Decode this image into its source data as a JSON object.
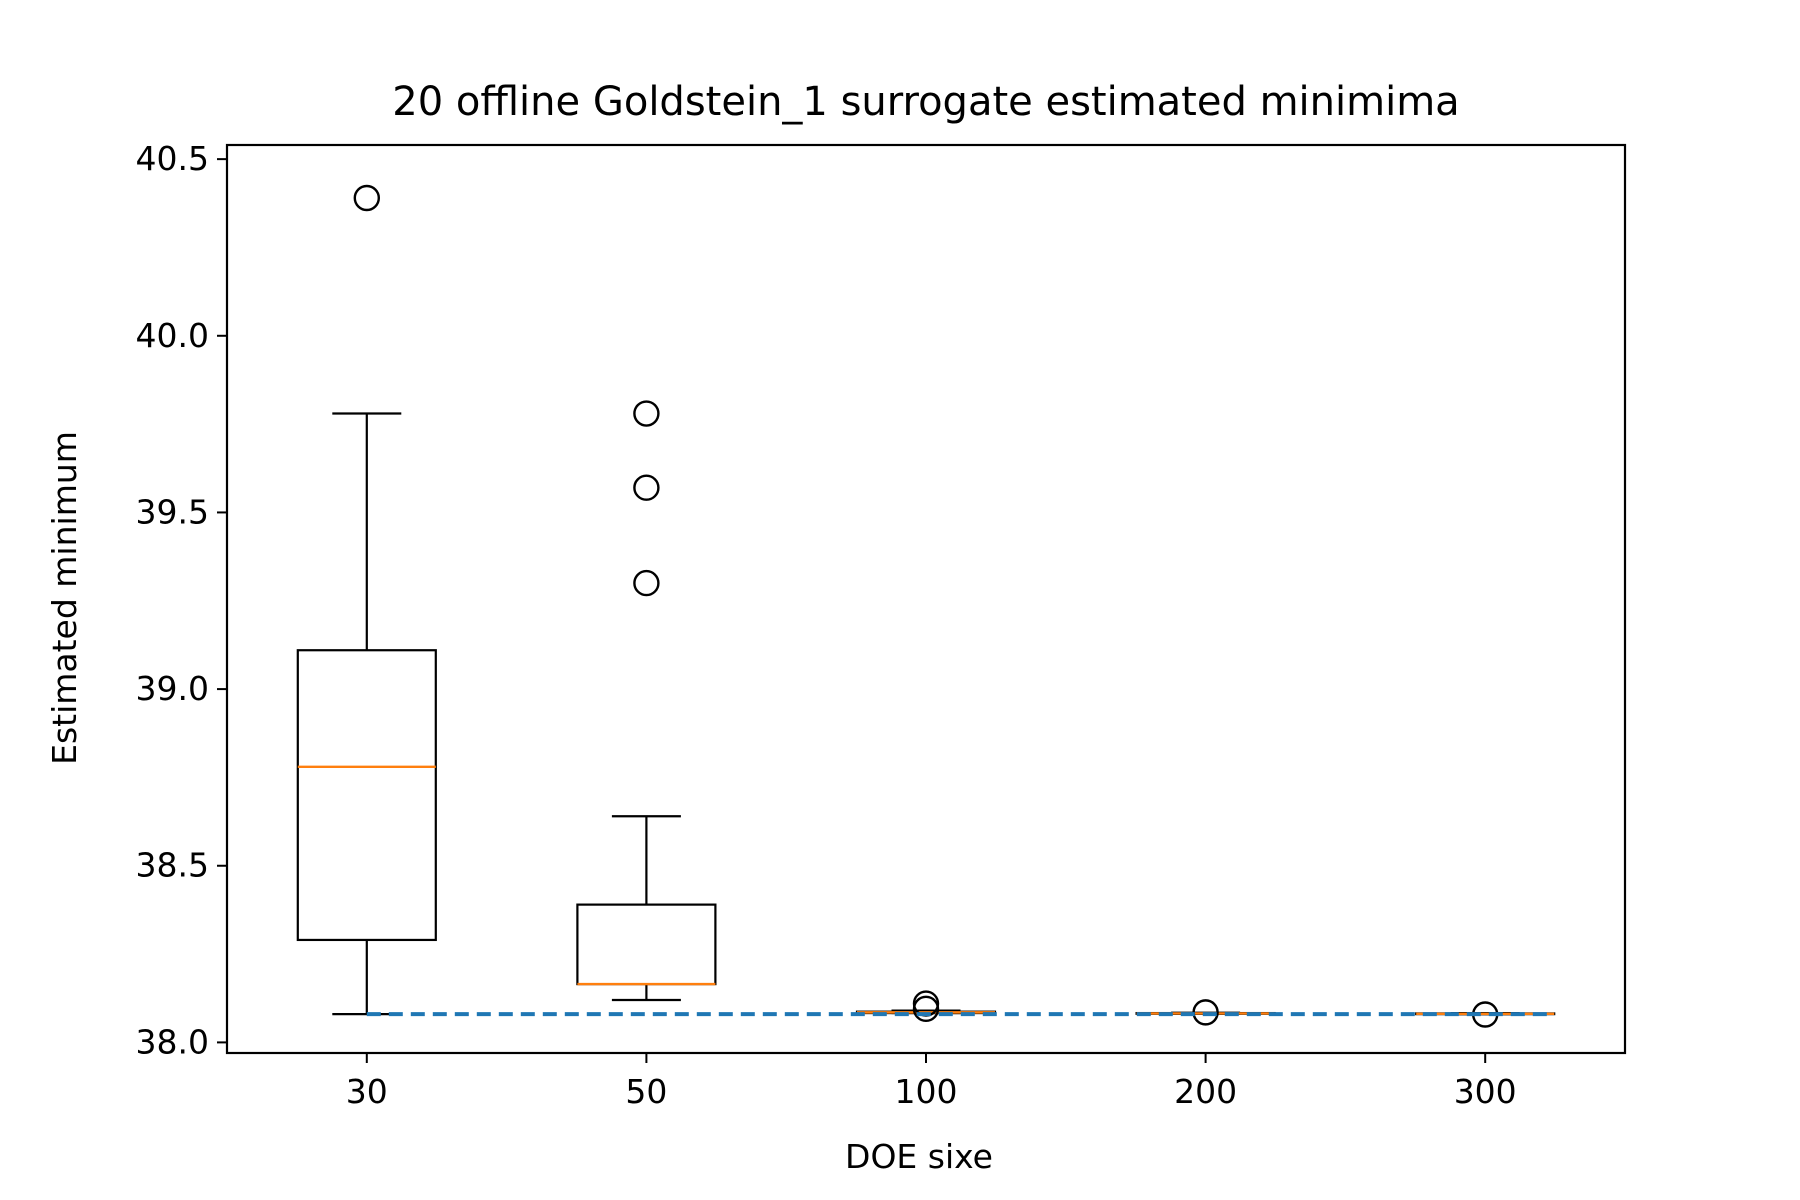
{
  "chart_data": {
    "type": "box",
    "title": "20 offline Goldstein_1 surrogate estimated minimima",
    "xlabel": "DOE sixe",
    "ylabel": "Estimated minimum",
    "ylim": [
      37.97,
      40.54
    ],
    "yticks": [
      "38.0",
      "38.5",
      "39.0",
      "39.5",
      "40.0",
      "40.5"
    ],
    "categories": [
      "30",
      "50",
      "100",
      "200",
      "300"
    ],
    "boxes": [
      {
        "category": "30",
        "whisker_low": 38.08,
        "q1": 38.29,
        "median": 38.78,
        "q3": 39.11,
        "whisker_high": 39.78,
        "outliers": [
          40.39
        ]
      },
      {
        "category": "50",
        "whisker_low": 38.12,
        "q1": 38.165,
        "median": 38.165,
        "q3": 38.39,
        "whisker_high": 38.64,
        "outliers": [
          39.3,
          39.57,
          39.78
        ]
      },
      {
        "category": "100",
        "whisker_low": 38.083,
        "q1": 38.083,
        "median": 38.085,
        "q3": 38.087,
        "whisker_high": 38.09,
        "outliers": [
          38.095,
          38.11
        ]
      },
      {
        "category": "200",
        "whisker_low": 38.081,
        "q1": 38.081,
        "median": 38.082,
        "q3": 38.083,
        "whisker_high": 38.084,
        "outliers": [
          38.085
        ]
      },
      {
        "category": "300",
        "whisker_low": 38.08,
        "q1": 38.08,
        "median": 38.081,
        "q3": 38.082,
        "whisker_high": 38.083,
        "outliers": [
          38.079
        ]
      }
    ],
    "reference_line": {
      "value": 38.08,
      "style": "dashed"
    },
    "colors": {
      "box": "#000000",
      "median": "#ff7f0e",
      "reference": "#1f77b4"
    },
    "grid": false,
    "legend": "none"
  }
}
